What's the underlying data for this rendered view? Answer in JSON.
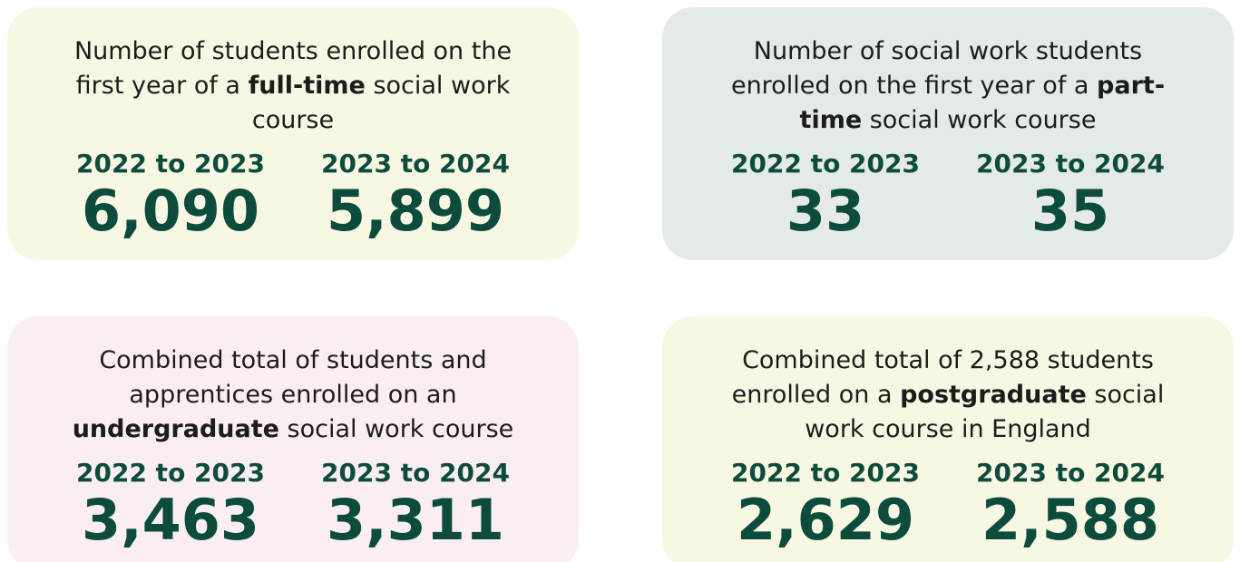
{
  "cards": [
    {
      "color": "#f8f7e3",
      "description": [
        {
          "text": "Number of students enrolled on the first year of a ",
          "bold": false
        },
        {
          "text": "full-time",
          "bold": true
        },
        {
          "text": " social work course",
          "bold": false
        }
      ],
      "stats": [
        {
          "period": "2022 to 2023",
          "value": "6,090"
        },
        {
          "period": "2023 to 2024",
          "value": "5,899"
        }
      ]
    },
    {
      "color": "#e3eae8",
      "description": [
        {
          "text": "Number of social work students enrolled on the first year of a ",
          "bold": false
        },
        {
          "text": "part-time",
          "bold": true
        },
        {
          "text": " social work course",
          "bold": false
        }
      ],
      "stats": [
        {
          "period": "2022 to 2023",
          "value": "33"
        },
        {
          "period": "2023 to 2024",
          "value": "35"
        }
      ]
    },
    {
      "color": "#fbeef3",
      "description": [
        {
          "text": "Combined total of students and apprentices enrolled on an ",
          "bold": false
        },
        {
          "text": "undergraduate",
          "bold": true
        },
        {
          "text": " social work course",
          "bold": false
        }
      ],
      "stats": [
        {
          "period": "2022 to 2023",
          "value": "3,463"
        },
        {
          "period": "2023 to 2024",
          "value": "3,311"
        }
      ]
    },
    {
      "color": "#f8f7e3",
      "description": [
        {
          "text": "Combined total of 2,588 students enrolled on a ",
          "bold": false
        },
        {
          "text": "postgraduate",
          "bold": true
        },
        {
          "text": " social work course in England",
          "bold": false
        }
      ],
      "stats": [
        {
          "period": "2022 to 2023",
          "value": "2,629"
        },
        {
          "period": "2023 to 2024",
          "value": "2,588"
        }
      ]
    }
  ]
}
